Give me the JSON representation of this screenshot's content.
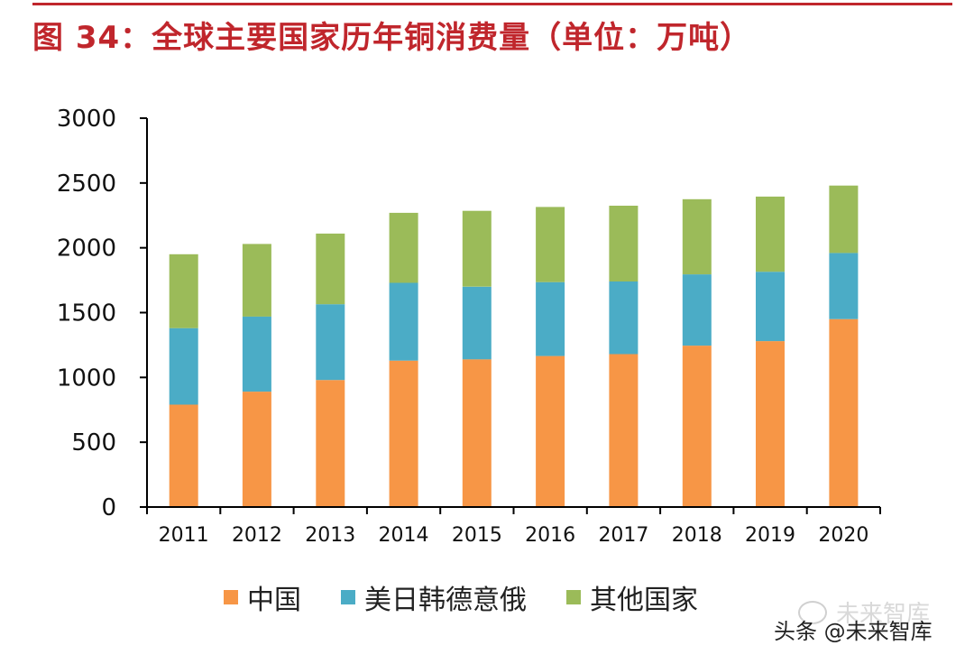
{
  "figure": {
    "title": "图 34：全球主要国家历年铜消费量（单位：万吨）"
  },
  "chart_data": {
    "type": "bar",
    "stacked": true,
    "categories": [
      "2011",
      "2012",
      "2013",
      "2014",
      "2015",
      "2016",
      "2017",
      "2018",
      "2019",
      "2020"
    ],
    "series": [
      {
        "name": "中国",
        "color": "#f79646",
        "values": [
          790,
          890,
          980,
          1130,
          1140,
          1165,
          1180,
          1245,
          1280,
          1450
        ]
      },
      {
        "name": "美日韩德意俄",
        "color": "#4bacc6",
        "values": [
          590,
          580,
          585,
          600,
          560,
          570,
          560,
          550,
          535,
          510
        ]
      },
      {
        "name": "其他国家",
        "color": "#9bbb59",
        "values": [
          570,
          560,
          545,
          540,
          585,
          580,
          585,
          580,
          580,
          520
        ]
      }
    ],
    "ylim": [
      0,
      3000
    ],
    "yticks": [
      "0",
      "500",
      "1000",
      "1500",
      "2000",
      "2500",
      "3000"
    ],
    "grid": false,
    "legend_position": "bottom"
  },
  "watermark": {
    "main": "头条 @未来智库",
    "faint": "未来智库"
  }
}
